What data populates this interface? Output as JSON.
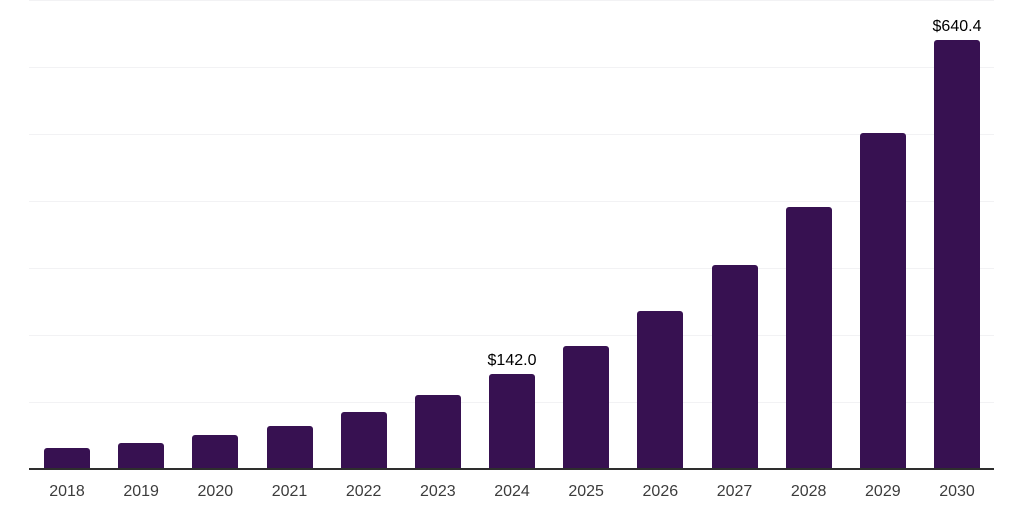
{
  "chart_data": {
    "type": "bar",
    "title": "",
    "xlabel": "",
    "ylabel": "",
    "categories": [
      "2018",
      "2019",
      "2020",
      "2021",
      "2022",
      "2023",
      "2024",
      "2025",
      "2026",
      "2027",
      "2028",
      "2029",
      "2030"
    ],
    "values": [
      31,
      39.5,
      50.5,
      64,
      85,
      110.5,
      142.0,
      183,
      236,
      305,
      391.5,
      502,
      640.4
    ],
    "data_labels": [
      {
        "category": "2024",
        "text": "$142.0"
      },
      {
        "category": "2030",
        "text": "$640.4"
      }
    ],
    "ylim": [
      0,
      700
    ],
    "gridline_step": 100,
    "grid": "horizontal",
    "legend": "none",
    "colors": {
      "bar": "#371151",
      "axis": "#2e2e2e",
      "gridline": "#f2f2f4",
      "tick_text": "#3c3c3c",
      "value_text": "#000000",
      "background": "#ffffff"
    }
  }
}
